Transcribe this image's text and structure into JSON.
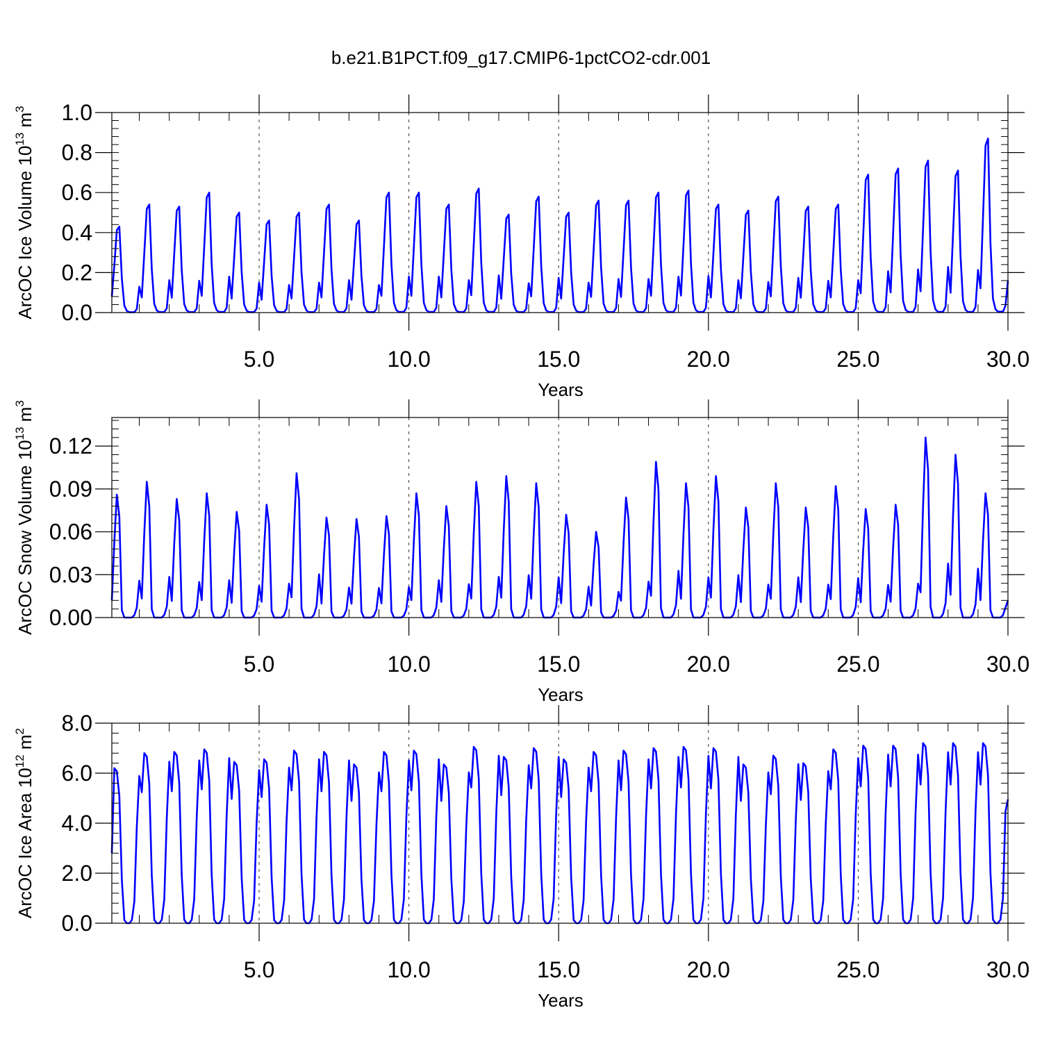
{
  "title": "b.e21.B1PCT.f09_g17.CMIP6-1pctCO2-cdr.001",
  "chart_data": [
    {
      "type": "line",
      "ylabel": "ArcOC Ice Volume",
      "yunit_base": "10",
      "yunit_exp": "13",
      "yunit_unit": "m",
      "yunit_unit_exp": "3",
      "xlabel": "Years",
      "xlim": [
        0.083,
        30.0
      ],
      "ylim": [
        0.0,
        1.0
      ],
      "xticks": [
        "5.0",
        "10.0",
        "15.0",
        "20.0",
        "25.0",
        "30.0"
      ],
      "yticks": [
        "0.0",
        "0.2",
        "0.4",
        "0.6",
        "0.8",
        "1.0"
      ],
      "grid": "dashed vertical at major x ticks",
      "color": "#0000ff",
      "annual_peaks": [
        0.43,
        0.54,
        0.53,
        0.6,
        0.5,
        0.46,
        0.5,
        0.54,
        0.46,
        0.6,
        0.6,
        0.54,
        0.62,
        0.49,
        0.58,
        0.5,
        0.56,
        0.56,
        0.6,
        0.61,
        0.54,
        0.51,
        0.58,
        0.53,
        0.54,
        0.69,
        0.72,
        0.76,
        0.71,
        0.87
      ],
      "month_shape": [
        0.14,
        0.55,
        0.96,
        1.0,
        0.4,
        0.08,
        0.02,
        0.005,
        0.005,
        0.005,
        0.04,
        0.3
      ],
      "first_value": 0.08,
      "last_value": 0.16
    },
    {
      "type": "line",
      "ylabel": "ArcOC Snow Volume",
      "yunit_base": "10",
      "yunit_exp": "13",
      "yunit_unit": "m",
      "yunit_unit_exp": "3",
      "xlabel": "Years",
      "xlim": [
        0.083,
        30.0
      ],
      "ylim": [
        0.0,
        0.14
      ],
      "xticks": [
        "5.0",
        "10.0",
        "15.0",
        "20.0",
        "25.0",
        "30.0"
      ],
      "yticks": [
        "0.00",
        "0.03",
        "0.06",
        "0.09",
        "0.12"
      ],
      "grid": "dashed vertical at major x ticks",
      "color": "#0000ff",
      "annual_peaks": [
        0.086,
        0.095,
        0.083,
        0.087,
        0.074,
        0.079,
        0.101,
        0.07,
        0.069,
        0.071,
        0.087,
        0.078,
        0.095,
        0.099,
        0.094,
        0.072,
        0.06,
        0.084,
        0.109,
        0.094,
        0.099,
        0.077,
        0.094,
        0.077,
        0.092,
        0.076,
        0.079,
        0.126,
        0.114,
        0.087
      ],
      "month_shape": [
        0.14,
        0.62,
        1.0,
        0.82,
        0.06,
        0.0,
        0.0,
        0.0,
        0.0,
        0.02,
        0.08,
        0.3
      ],
      "first_value": 0.012,
      "last_value": 0.012
    },
    {
      "type": "line",
      "ylabel": "ArcOC Ice Area",
      "yunit_base": "10",
      "yunit_exp": "12",
      "yunit_unit": "m",
      "yunit_unit_exp": "2",
      "xlabel": "Years",
      "xlim": [
        0.083,
        30.0
      ],
      "ylim": [
        0.0,
        8.0
      ],
      "xticks": [
        "5.0",
        "10.0",
        "15.0",
        "20.0",
        "25.0",
        "30.0"
      ],
      "yticks": [
        "0.0",
        "2.0",
        "4.0",
        "6.0",
        "8.0"
      ],
      "grid": "dashed vertical at major x ticks",
      "color": "#0000ff",
      "annual_peaks": [
        6.2,
        6.8,
        6.85,
        6.95,
        6.45,
        6.55,
        6.9,
        6.85,
        6.35,
        6.85,
        6.9,
        6.35,
        7.05,
        6.65,
        7.0,
        6.55,
        6.85,
        6.9,
        7.0,
        7.05,
        7.0,
        6.35,
        6.7,
        6.4,
        6.95,
        7.1,
        7.1,
        7.2,
        7.2,
        7.2
      ],
      "month_shape": [
        0.77,
        1.0,
        0.98,
        0.82,
        0.28,
        0.02,
        0.0,
        0.0,
        0.02,
        0.14,
        0.62,
        0.95
      ],
      "first_value": 2.8,
      "last_value": 4.95
    }
  ]
}
